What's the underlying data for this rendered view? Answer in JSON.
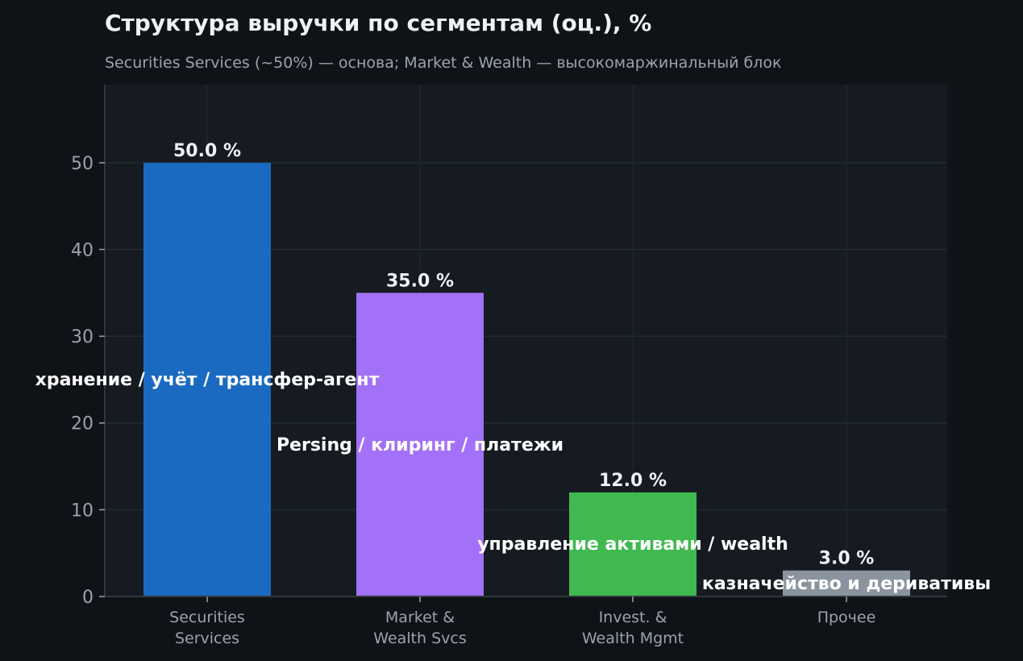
{
  "chart_data": {
    "type": "bar",
    "title": "Структура выручки по сегментам (оц.), %",
    "subtitle": "Securities Services (~50%) — основа; Market & Wealth — высокомаржинальный блок",
    "xlabel": "",
    "ylabel": "",
    "ylim": [
      0,
      59
    ],
    "yticks": [
      0,
      10,
      20,
      30,
      40,
      50
    ],
    "grid": true,
    "categories": [
      [
        "Securities",
        "Services"
      ],
      [
        "Market &",
        "Wealth Svcs"
      ],
      [
        "Invest. &",
        "Wealth Mgmt"
      ],
      [
        "Прочее"
      ]
    ],
    "values": [
      50.0,
      35.0,
      12.0,
      3.0
    ],
    "value_labels": [
      "50.0 %",
      "35.0 %",
      "12.0 %",
      "3.0 %"
    ],
    "annotations": [
      "хранение / учёт / трансфер-агент",
      "Persing / клиринг / платежи",
      "управление активами / wealth",
      "казначейство и деривативы"
    ],
    "colors": [
      "#1b6ac1",
      "#a371f7",
      "#3fb950",
      "#8b949e"
    ]
  }
}
